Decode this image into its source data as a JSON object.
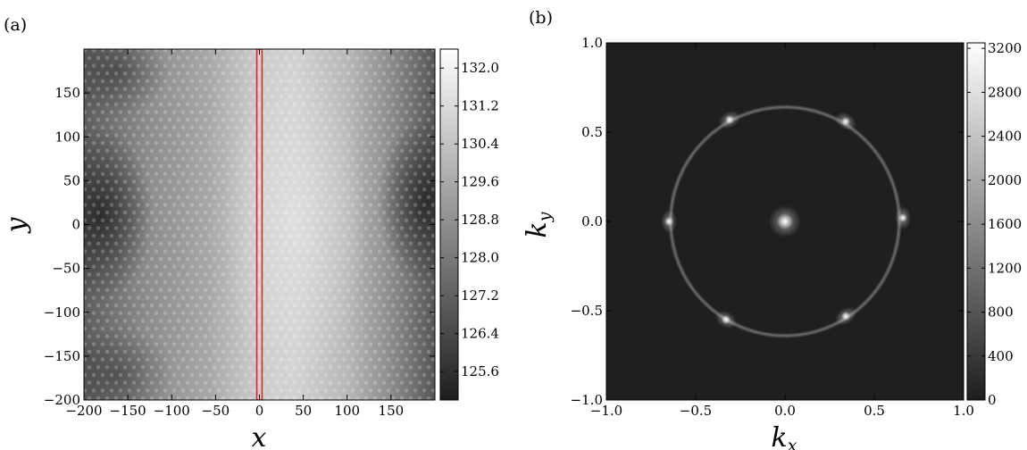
{
  "chart_data": [
    {
      "type": "heatmap",
      "panel_label": "(a)",
      "xlabel": "x",
      "ylabel": "y",
      "xlim": [
        -200,
        200
      ],
      "ylim": [
        -200,
        200
      ],
      "x_ticks": [
        -200,
        -150,
        -100,
        -50,
        0,
        50,
        100,
        150
      ],
      "x_tick_labels": [
        "−200",
        "−150",
        "−100",
        "−50",
        "0",
        "50",
        "100",
        "150"
      ],
      "y_ticks": [
        -200,
        -150,
        -100,
        -50,
        0,
        50,
        100,
        150
      ],
      "y_tick_labels": [
        "−200",
        "−150",
        "−100",
        "−50",
        "0",
        "50",
        "100",
        "150"
      ],
      "colorbar": {
        "min": 125.0,
        "max": 132.4,
        "ticks": [
          125.6,
          126.4,
          127.2,
          128.0,
          128.8,
          129.6,
          130.4,
          131.2,
          132.0
        ],
        "tick_labels": [
          "125.6",
          "126.4",
          "127.2",
          "128.0",
          "128.8",
          "129.6",
          "130.4",
          "131.2",
          "132.0"
        ],
        "colormap": "gray"
      },
      "highlight_strip": {
        "x_range": [
          -3,
          3
        ],
        "color": "#e8231e"
      },
      "grid": false
    },
    {
      "type": "heatmap",
      "panel_label": "(b)",
      "xlabel": "k_x",
      "ylabel": "k_y",
      "xlabel_main": "k",
      "xlabel_sub": "x",
      "ylabel_main": "k",
      "ylabel_sub": "y",
      "xlim": [
        -1.0,
        1.0
      ],
      "ylim": [
        -1.0,
        1.0
      ],
      "x_ticks": [
        -1.0,
        -0.5,
        0.0,
        0.5,
        1.0
      ],
      "x_tick_labels": [
        "−1.0",
        "−0.5",
        "0.0",
        "0.5",
        "1.0"
      ],
      "y_ticks": [
        -1.0,
        -0.5,
        0.0,
        0.5,
        1.0
      ],
      "y_tick_labels": [
        "−1.0",
        "−0.5",
        "0.0",
        "0.5",
        "1.0"
      ],
      "colorbar": {
        "min": 0,
        "max": 3250,
        "ticks": [
          0,
          400,
          800,
          1200,
          1600,
          2000,
          2400,
          2800,
          3200
        ],
        "tick_labels": [
          "0",
          "400",
          "800",
          "1200",
          "1600",
          "2000",
          "2400",
          "2800",
          "3200"
        ],
        "colormap": "gray"
      },
      "ring_radius": 0.64,
      "bragg_peaks": [
        {
          "kx": 0.66,
          "ky": 0.02
        },
        {
          "kx": 0.34,
          "ky": 0.56
        },
        {
          "kx": -0.31,
          "ky": 0.57
        },
        {
          "kx": -0.65,
          "ky": 0.0
        },
        {
          "kx": -0.33,
          "ky": -0.55
        },
        {
          "kx": 0.34,
          "ky": -0.53
        }
      ],
      "grid": false
    }
  ]
}
